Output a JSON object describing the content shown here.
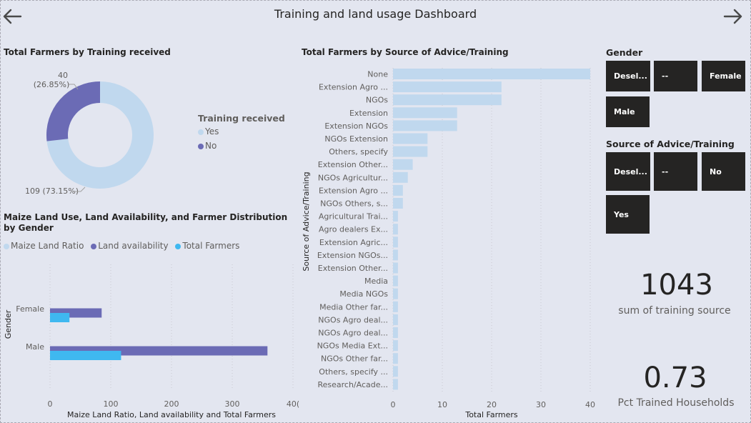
{
  "page": {
    "title": "Training and land usage Dashboard"
  },
  "donut": {
    "title": "Total Farmers by Training received",
    "legend_title": "Training received",
    "slices": [
      {
        "label": "Yes",
        "value": 109,
        "pct": "(73.15%)",
        "color": "#c0d8ee"
      },
      {
        "label": "No",
        "value": 40,
        "pct": "(26.85%)",
        "color": "#6b6bb5"
      }
    ]
  },
  "source_title": "Total Farmers by Source of Advice/Training",
  "gender_title": "Maize Land Use, Land Availability, and Farmer Distribution by Gender",
  "slicers": {
    "gender": {
      "title": "Gender",
      "tiles": [
        "Desel...",
        "--",
        "Female",
        "Male"
      ]
    },
    "source": {
      "title": "Source of Advice/Training",
      "tiles": [
        "Desel...",
        "--",
        "No",
        "Yes"
      ]
    }
  },
  "kpis": [
    {
      "value": "1043",
      "label": "sum of training source"
    },
    {
      "value": "0.73",
      "label": "Pct Trained Households"
    }
  ],
  "chart_data": [
    {
      "type": "pie",
      "title": "Total Farmers by Training received",
      "legend_title": "Training received",
      "categories": [
        "Yes",
        "No"
      ],
      "values": [
        109,
        40
      ],
      "percentages": [
        73.15,
        26.85
      ],
      "colors": [
        "#c0d8ee",
        "#6b6bb5"
      ]
    },
    {
      "type": "bar",
      "orientation": "horizontal",
      "title": "Total Farmers by Source of Advice/Training",
      "xlabel": "Total Farmers",
      "ylabel": "Source of Advice/Training",
      "xlim": [
        0,
        40
      ],
      "xticks": [
        0,
        10,
        20,
        30,
        40
      ],
      "color": "#c0d8ee",
      "categories": [
        "None",
        "Extension Agro ...",
        "NGOs",
        "Extension",
        "Extension NGOs",
        "NGOs Extension",
        "Others, specify",
        "Extension Other...",
        "NGOs Agricultur...",
        "Extension Agro ...",
        "NGOs Others, s...",
        "Agricultural Trai...",
        "Agro dealers Ex...",
        "Extension Agric...",
        "Extension NGOs...",
        "Extension Other...",
        "Media",
        "Media NGOs",
        "Media Other far...",
        "NGOs Agro deal...",
        "NGOs Agro deal...",
        "NGOs Media Ext...",
        "NGOs Other far...",
        "Others, specify ...",
        "Research/Acade..."
      ],
      "values": [
        40,
        22,
        22,
        13,
        13,
        7,
        7,
        4,
        3,
        2,
        2,
        1,
        1,
        1,
        1,
        1,
        1,
        1,
        1,
        1,
        1,
        1,
        1,
        1,
        1
      ]
    },
    {
      "type": "bar",
      "orientation": "horizontal",
      "title": "Maize Land Use, Land Availability, and Farmer Distribution by Gender",
      "xlabel": "Maize Land Ratio, Land availability and Total Farmers",
      "ylabel": "Gender",
      "xlim": [
        0,
        400
      ],
      "xticks": [
        0,
        100,
        200,
        300,
        "40("
      ],
      "categories": [
        "Female",
        "Male"
      ],
      "series": [
        {
          "name": "Maize Land Ratio",
          "color": "#c0d8ee",
          "values": [
            0.5,
            0.5
          ]
        },
        {
          "name": "Land availability",
          "color": "#6b6bb5",
          "values": [
            85,
            358
          ]
        },
        {
          "name": "Total Farmers",
          "color": "#3fb8f0",
          "values": [
            32,
            117
          ]
        }
      ]
    }
  ]
}
